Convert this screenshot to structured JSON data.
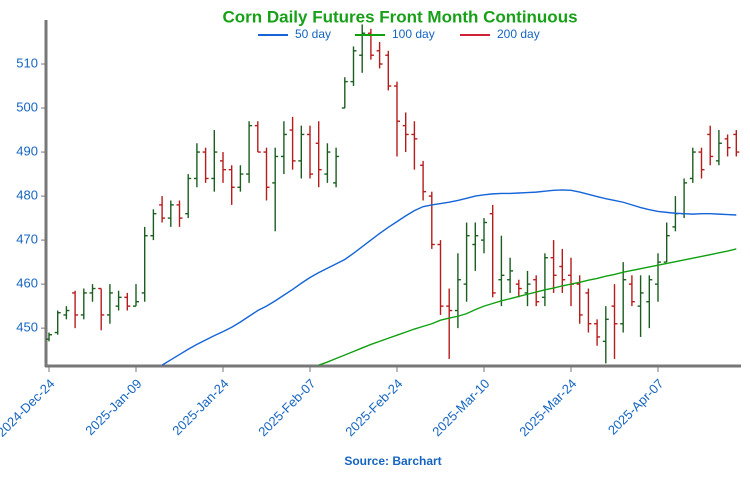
{
  "chart_data": {
    "type": "ohlc",
    "title": "Corn Daily Futures Front Month Continuous",
    "source": "Source: Barchart",
    "categories": [
      "2024-Dec-24",
      null,
      null,
      null,
      null,
      null,
      null,
      null,
      null,
      null,
      "2025-Jan-09",
      null,
      null,
      null,
      null,
      null,
      null,
      null,
      null,
      null,
      "2025-Jan-24",
      null,
      null,
      null,
      null,
      null,
      null,
      null,
      null,
      null,
      "2025-Feb-07",
      null,
      null,
      null,
      null,
      null,
      null,
      null,
      null,
      null,
      "2025-Feb-24",
      null,
      null,
      null,
      null,
      null,
      null,
      null,
      null,
      null,
      "2025-Mar-10",
      null,
      null,
      null,
      null,
      null,
      null,
      null,
      null,
      null,
      "2025-Mar-24",
      null,
      null,
      null,
      null,
      null,
      null,
      null,
      null,
      null,
      "2025-Apr-07",
      null,
      null,
      null,
      null,
      null,
      null,
      null,
      null,
      null
    ],
    "open": [
      447.5,
      449,
      453,
      458,
      453,
      458,
      459,
      453,
      455,
      457,
      455,
      458,
      471,
      478,
      475,
      478,
      476,
      484,
      490,
      484,
      488,
      486,
      482,
      485,
      496,
      490,
      483,
      489,
      495,
      488,
      494,
      492,
      485,
      483,
      500,
      506,
      512,
      517,
      513,
      512,
      505,
      496,
      494,
      487,
      480,
      469,
      455,
      454,
      460,
      469,
      470,
      476,
      461,
      461,
      460,
      458,
      461,
      457,
      466,
      464,
      462,
      460,
      458,
      451,
      447,
      455,
      451,
      460,
      455,
      456,
      460,
      465,
      473,
      476,
      484,
      490,
      494,
      488,
      493,
      494
    ],
    "high": [
      449,
      454,
      455,
      458.5,
      459,
      460,
      459,
      460,
      458.5,
      458,
      460,
      473,
      477,
      480,
      479,
      479,
      485,
      492,
      491,
      495,
      490,
      487,
      487,
      497,
      497,
      491,
      491,
      497,
      498,
      496,
      496,
      497,
      492,
      491,
      507,
      514,
      519,
      518,
      515,
      513,
      506,
      499,
      497,
      488,
      481,
      470,
      459,
      467,
      474,
      474,
      475,
      478,
      471,
      466,
      461,
      463,
      462,
      467,
      470,
      468,
      466,
      462,
      459,
      452,
      455,
      460,
      465,
      462,
      462,
      462,
      467,
      474,
      480,
      484,
      491,
      491,
      496,
      495,
      494,
      495
    ],
    "low": [
      447,
      448.5,
      452,
      450,
      452,
      456,
      449.5,
      451,
      454,
      454,
      455,
      456,
      470,
      474,
      473,
      473,
      475,
      482,
      483,
      481,
      483,
      478,
      481,
      483,
      490,
      479,
      472,
      485,
      486,
      484,
      484,
      482,
      483,
      482,
      500,
      505,
      508,
      511,
      509,
      504,
      489,
      490,
      486,
      479,
      468,
      453,
      443,
      450,
      456,
      463,
      467,
      457,
      455,
      458,
      457,
      455,
      455,
      455,
      458,
      458,
      455,
      451,
      449,
      446,
      442,
      443,
      449,
      455,
      448,
      450,
      456,
      465,
      472,
      475,
      483,
      484,
      487,
      487,
      489,
      489
    ],
    "close": [
      448.5,
      453.5,
      454,
      453,
      458,
      459,
      453,
      458,
      457,
      455,
      456,
      471,
      476,
      475,
      478,
      475,
      484,
      490,
      484,
      490,
      486,
      482,
      485,
      496,
      490,
      482,
      489,
      494,
      488,
      494,
      485,
      486,
      490,
      489,
      506,
      513,
      517,
      512,
      510,
      505,
      497,
      494,
      493,
      481,
      469,
      455,
      454,
      461,
      471,
      471,
      474,
      458,
      462,
      463,
      459,
      460,
      456,
      466,
      462,
      461,
      460,
      453,
      451,
      448,
      452,
      451,
      461,
      456,
      458,
      461,
      465,
      471,
      476,
      483,
      490,
      486,
      489,
      492,
      491,
      490
    ],
    "up_color": "#1b5e20",
    "down_color": "#b71c1c",
    "series": [
      {
        "name": "50 day",
        "color": "#1565d8",
        "values": [
          null,
          null,
          null,
          null,
          null,
          null,
          null,
          null,
          null,
          null,
          null,
          null,
          null,
          441.6,
          442.8,
          444,
          445.2,
          446.3,
          447.3,
          448.3,
          449.2,
          450.2,
          451.4,
          452.7,
          454,
          455,
          456.2,
          457.5,
          458.8,
          460.2,
          461.5,
          462.6,
          463.6,
          464.6,
          465.6,
          467,
          468.5,
          470,
          471.5,
          472.9,
          474.2,
          475.5,
          476.7,
          477.6,
          478,
          478.3,
          478.6,
          479,
          479.5,
          480,
          480.3,
          480.5,
          480.6,
          480.6,
          480.7,
          480.8,
          480.9,
          481.1,
          481.3,
          481.4,
          481.3,
          480.9,
          480.4,
          479.9,
          479.4,
          479,
          478.6,
          478,
          477.4,
          476.9,
          476.5,
          476.3,
          476.1,
          476,
          475.9,
          476,
          476,
          475.9,
          475.8,
          475.7
        ]
      },
      {
        "name": "100 day",
        "color": "#10a010",
        "values": [
          null,
          null,
          null,
          null,
          null,
          null,
          null,
          null,
          null,
          null,
          null,
          null,
          null,
          null,
          null,
          null,
          null,
          null,
          null,
          null,
          null,
          null,
          null,
          null,
          null,
          null,
          null,
          null,
          null,
          null,
          null,
          441.6,
          442.3,
          443.1,
          443.9,
          444.7,
          445.5,
          446.3,
          447,
          447.7,
          448.4,
          449.1,
          449.8,
          450.4,
          451,
          451.8,
          452.3,
          452.7,
          453.3,
          454.2,
          455,
          455.6,
          456.2,
          456.7,
          457.2,
          457.7,
          458.2,
          458.7,
          459.1,
          459.6,
          460,
          460.4,
          460.9,
          461.3,
          461.8,
          462.2,
          462.7,
          463.1,
          463.5,
          463.9,
          464.3,
          464.7,
          465.1,
          465.5,
          465.9,
          466.3,
          466.7,
          467.1,
          467.5,
          468
        ]
      },
      {
        "name": "200 day",
        "color": "#d0203a",
        "values": [
          null,
          null,
          null,
          null,
          null,
          null,
          null,
          null,
          null,
          null,
          null,
          null,
          null,
          null,
          null,
          null,
          null,
          null,
          null,
          null,
          null,
          null,
          null,
          null,
          null,
          null,
          null,
          null,
          null,
          null,
          null,
          null,
          null,
          null,
          null,
          null,
          null,
          null,
          null,
          null,
          null,
          null,
          null,
          null,
          null,
          null,
          null,
          null,
          null,
          null,
          null,
          null,
          null,
          null,
          null,
          null,
          null,
          null,
          null,
          null,
          null,
          null,
          null,
          null,
          null,
          null,
          null,
          null,
          null,
          null,
          null,
          null,
          null,
          null,
          null,
          null,
          null,
          null,
          null,
          null
        ]
      }
    ],
    "ylim": [
      441.4,
      520
    ],
    "yticks": [
      450,
      460,
      470,
      480,
      490,
      500,
      510
    ]
  }
}
